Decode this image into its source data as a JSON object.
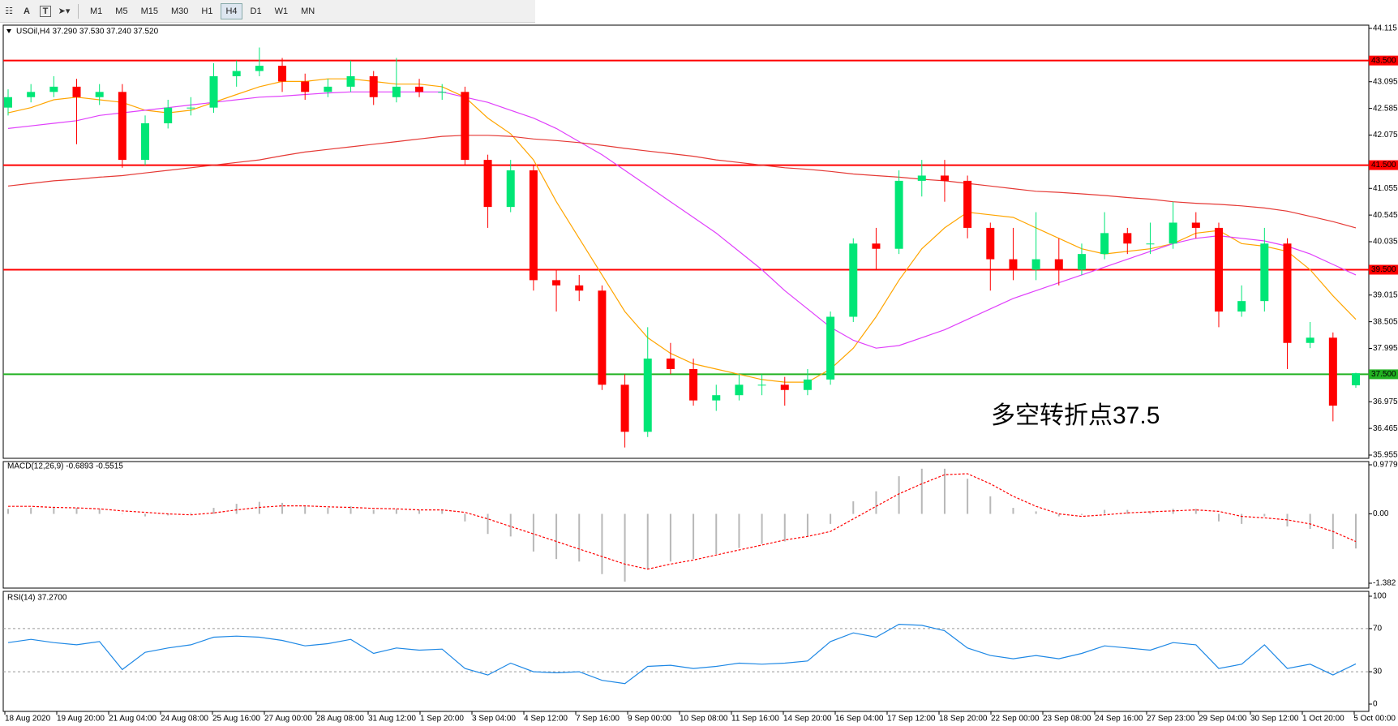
{
  "toolbar": {
    "tools": [
      "A",
      "T"
    ],
    "buttons": [
      "M1",
      "M5",
      "M15",
      "M30",
      "H1",
      "H4",
      "D1",
      "W1",
      "MN"
    ],
    "active": "H4"
  },
  "chart_data": [
    {
      "type": "candlestick",
      "title": "USOil,H4 37.290 37.530 37.240 37.520",
      "ylim": [
        35.955,
        44.115
      ],
      "yticks": [
        44.115,
        43.095,
        42.585,
        42.075,
        41.055,
        40.545,
        40.035,
        39.015,
        38.505,
        37.995,
        36.975,
        36.465,
        35.955
      ],
      "time_labels": [
        "18 Aug 2020",
        "19 Aug 20:00",
        "21 Aug 04:00",
        "24 Aug 08:00",
        "25 Aug 16:00",
        "27 Aug 00:00",
        "28 Aug 08:00",
        "31 Aug 12:00",
        "1 Sep 20:00",
        "3 Sep 04:00",
        "4 Sep 12:00",
        "7 Sep 16:00",
        "9 Sep 00:00",
        "10 Sep 08:00",
        "11 Sep 16:00",
        "14 Sep 20:00",
        "16 Sep 04:00",
        "17 Sep 12:00",
        "18 Sep 20:00",
        "22 Sep 00:00",
        "23 Sep 08:00",
        "24 Sep 16:00",
        "27 Sep 23:00",
        "29 Sep 04:00",
        "30 Sep 12:00",
        "1 Oct 20:00",
        "5 Oct 00:00"
      ],
      "up_color": "#00e676",
      "down_color": "#ff0000",
      "open": [
        42.6,
        42.8,
        42.9,
        43.0,
        42.8,
        42.9,
        41.6,
        42.3,
        42.6,
        42.6,
        43.2,
        43.3,
        43.4,
        43.1,
        42.9,
        43.0,
        43.2,
        42.8,
        43.0,
        42.9,
        42.9,
        41.6,
        40.7,
        41.4,
        39.3,
        39.2,
        39.1,
        37.3,
        36.4,
        37.8,
        37.6,
        37.0,
        37.1,
        37.3,
        37.3,
        37.2,
        37.4,
        38.6,
        40.0,
        39.9,
        41.2,
        41.3,
        41.2,
        40.3,
        39.7,
        39.5,
        39.7,
        39.5,
        39.8,
        40.2,
        40.0,
        40.0,
        40.4,
        40.3,
        38.7,
        38.9,
        40.0,
        38.1,
        38.2,
        37.29
      ],
      "high": [
        42.95,
        43.05,
        43.2,
        43.15,
        43.05,
        43.05,
        42.45,
        42.75,
        42.8,
        43.45,
        43.5,
        43.75,
        43.55,
        43.25,
        43.15,
        43.5,
        43.3,
        43.55,
        43.15,
        43.05,
        43.0,
        41.7,
        41.6,
        41.5,
        39.5,
        39.4,
        39.2,
        37.5,
        38.4,
        38.1,
        37.8,
        37.3,
        37.5,
        37.5,
        37.45,
        37.6,
        38.7,
        40.1,
        40.3,
        41.4,
        41.6,
        41.6,
        41.3,
        40.4,
        40.3,
        40.6,
        40.1,
        40.0,
        40.6,
        40.3,
        40.4,
        40.8,
        40.6,
        40.4,
        39.2,
        40.3,
        40.1,
        38.5,
        38.3,
        37.53
      ],
      "low": [
        42.45,
        42.7,
        42.8,
        41.9,
        42.65,
        41.45,
        41.5,
        42.2,
        42.45,
        42.5,
        43.0,
        43.2,
        42.9,
        42.75,
        42.8,
        42.9,
        42.65,
        42.7,
        42.8,
        42.75,
        41.5,
        40.3,
        40.6,
        39.1,
        38.7,
        38.9,
        37.2,
        36.1,
        36.3,
        37.5,
        36.9,
        36.8,
        37.0,
        37.1,
        36.9,
        37.1,
        37.3,
        38.5,
        39.5,
        39.8,
        40.9,
        40.8,
        40.1,
        39.1,
        39.3,
        39.3,
        39.2,
        39.4,
        39.7,
        39.8,
        39.8,
        39.9,
        40.1,
        38.4,
        38.6,
        38.7,
        37.6,
        38.0,
        36.6,
        37.24
      ],
      "close": [
        42.8,
        42.9,
        43.0,
        42.8,
        42.9,
        41.6,
        42.3,
        42.6,
        42.6,
        43.2,
        43.3,
        43.4,
        43.1,
        42.9,
        43.0,
        43.2,
        42.8,
        43.0,
        42.9,
        42.9,
        41.6,
        40.7,
        41.4,
        39.3,
        39.2,
        39.1,
        37.3,
        36.4,
        37.8,
        37.6,
        37.0,
        37.1,
        37.3,
        37.3,
        37.2,
        37.4,
        38.6,
        40.0,
        39.9,
        41.2,
        41.3,
        41.2,
        40.3,
        39.7,
        39.5,
        39.7,
        39.5,
        39.8,
        40.2,
        40.0,
        40.0,
        40.4,
        40.3,
        38.7,
        38.9,
        40.0,
        38.1,
        38.2,
        36.9,
        37.52
      ],
      "overlays": [
        {
          "color": "#ffa500",
          "values": [
            42.5,
            42.6,
            42.75,
            42.8,
            42.75,
            42.7,
            42.55,
            42.5,
            42.55,
            42.7,
            42.85,
            43.0,
            43.1,
            43.1,
            43.15,
            43.15,
            43.1,
            43.05,
            43.05,
            43.0,
            42.8,
            42.4,
            42.1,
            41.6,
            40.8,
            40.1,
            39.4,
            38.7,
            38.2,
            37.9,
            37.7,
            37.6,
            37.5,
            37.4,
            37.35,
            37.35,
            37.6,
            38.0,
            38.6,
            39.3,
            39.9,
            40.3,
            40.6,
            40.55,
            40.5,
            40.3,
            40.1,
            39.9,
            39.8,
            39.85,
            39.9,
            40.0,
            40.2,
            40.25,
            40.0,
            39.95,
            39.85,
            39.5,
            39.0,
            38.55
          ]
        },
        {
          "color": "#e040fb",
          "values": [
            42.2,
            42.25,
            42.3,
            42.35,
            42.45,
            42.5,
            42.55,
            42.6,
            42.65,
            42.7,
            42.75,
            42.8,
            42.82,
            42.85,
            42.88,
            42.9,
            42.9,
            42.9,
            42.9,
            42.9,
            42.8,
            42.7,
            42.55,
            42.4,
            42.2,
            41.95,
            41.7,
            41.4,
            41.1,
            40.8,
            40.5,
            40.2,
            39.85,
            39.5,
            39.1,
            38.75,
            38.4,
            38.15,
            38.0,
            38.05,
            38.2,
            38.35,
            38.55,
            38.75,
            38.95,
            39.1,
            39.25,
            39.4,
            39.55,
            39.7,
            39.85,
            40.0,
            40.1,
            40.15,
            40.1,
            40.05,
            39.95,
            39.8,
            39.6,
            39.4
          ]
        },
        {
          "color": "#e53935",
          "values": [
            41.1,
            41.15,
            41.2,
            41.23,
            41.27,
            41.3,
            41.35,
            41.4,
            41.45,
            41.5,
            41.55,
            41.6,
            41.68,
            41.75,
            41.8,
            41.85,
            41.9,
            41.95,
            42.0,
            42.05,
            42.07,
            42.07,
            42.05,
            42.0,
            41.97,
            41.93,
            41.88,
            41.82,
            41.77,
            41.72,
            41.67,
            41.6,
            41.55,
            41.5,
            41.45,
            41.42,
            41.38,
            41.33,
            41.3,
            41.27,
            41.23,
            41.2,
            41.15,
            41.1,
            41.05,
            41.0,
            40.98,
            40.95,
            40.92,
            40.88,
            40.85,
            40.8,
            40.77,
            40.75,
            40.72,
            40.68,
            40.62,
            40.52,
            40.42,
            40.3
          ]
        }
      ],
      "levels": [
        {
          "value": 43.5,
          "label": "43.500",
          "color": "#ff0000"
        },
        {
          "value": 41.5,
          "label": "41.500",
          "color": "#ff0000"
        },
        {
          "value": 39.5,
          "label": "39.500",
          "color": "#ff0000"
        },
        {
          "value": 37.5,
          "label": "37.500",
          "color": "#22b222"
        }
      ],
      "annotation": {
        "text": "多空转折点37.5",
        "color": "#ff1a1a"
      }
    },
    {
      "type": "bar",
      "title": "MACD(12,26,9) -0.6893 -0.5515",
      "ylim": [
        -1.382,
        0.9779
      ],
      "yticks": [
        0.9779,
        {
          "value": 0,
          "label": "0.00"
        },
        -1.382
      ],
      "color": "#b8b8b8",
      "values": [
        0.1,
        0.12,
        0.14,
        0.12,
        0.1,
        0.0,
        -0.05,
        -0.03,
        0.02,
        0.12,
        0.2,
        0.24,
        0.22,
        0.15,
        0.12,
        0.15,
        0.08,
        0.1,
        0.08,
        0.07,
        -0.15,
        -0.4,
        -0.45,
        -0.75,
        -0.9,
        -0.95,
        -1.2,
        -1.35,
        -1.1,
        -0.95,
        -0.9,
        -0.8,
        -0.68,
        -0.6,
        -0.55,
        -0.45,
        -0.2,
        0.25,
        0.45,
        0.75,
        0.9,
        0.9,
        0.7,
        0.35,
        0.12,
        0.05,
        -0.05,
        -0.02,
        0.08,
        0.08,
        0.05,
        0.1,
        0.1,
        -0.15,
        -0.2,
        -0.05,
        -0.25,
        -0.3,
        -0.7,
        -0.6893
      ],
      "signal": {
        "color": "#ff0000",
        "values": [
          0.15,
          0.15,
          0.13,
          0.12,
          0.1,
          0.06,
          0.03,
          0.0,
          -0.02,
          0.02,
          0.08,
          0.13,
          0.16,
          0.16,
          0.14,
          0.13,
          0.11,
          0.1,
          0.08,
          0.08,
          0.03,
          -0.1,
          -0.25,
          -0.4,
          -0.55,
          -0.7,
          -0.85,
          -1.0,
          -1.1,
          -1.0,
          -0.92,
          -0.82,
          -0.72,
          -0.62,
          -0.52,
          -0.45,
          -0.35,
          -0.1,
          0.15,
          0.4,
          0.6,
          0.78,
          0.8,
          0.6,
          0.35,
          0.15,
          0.0,
          -0.05,
          -0.02,
          0.02,
          0.04,
          0.06,
          0.08,
          0.05,
          -0.05,
          -0.08,
          -0.12,
          -0.2,
          -0.35,
          -0.5515
        ]
      }
    },
    {
      "type": "line",
      "title": "RSI(14) 37.2700",
      "ylim": [
        0,
        100
      ],
      "yticks": [
        100,
        70,
        30,
        0
      ],
      "levels": [
        70,
        30
      ],
      "color": "#1e88e5",
      "values": [
        57,
        60,
        57,
        55,
        58,
        32,
        48,
        52,
        55,
        62,
        63,
        62,
        59,
        54,
        56,
        60,
        47,
        52,
        50,
        51,
        33,
        27,
        38,
        30,
        29,
        30,
        22,
        19,
        35,
        36,
        33,
        35,
        38,
        37,
        38,
        40,
        58,
        66,
        62,
        74,
        73,
        68,
        52,
        45,
        42,
        45,
        42,
        47,
        54,
        52,
        50,
        57,
        55,
        33,
        37,
        55,
        33,
        37,
        27,
        37.27
      ]
    }
  ]
}
